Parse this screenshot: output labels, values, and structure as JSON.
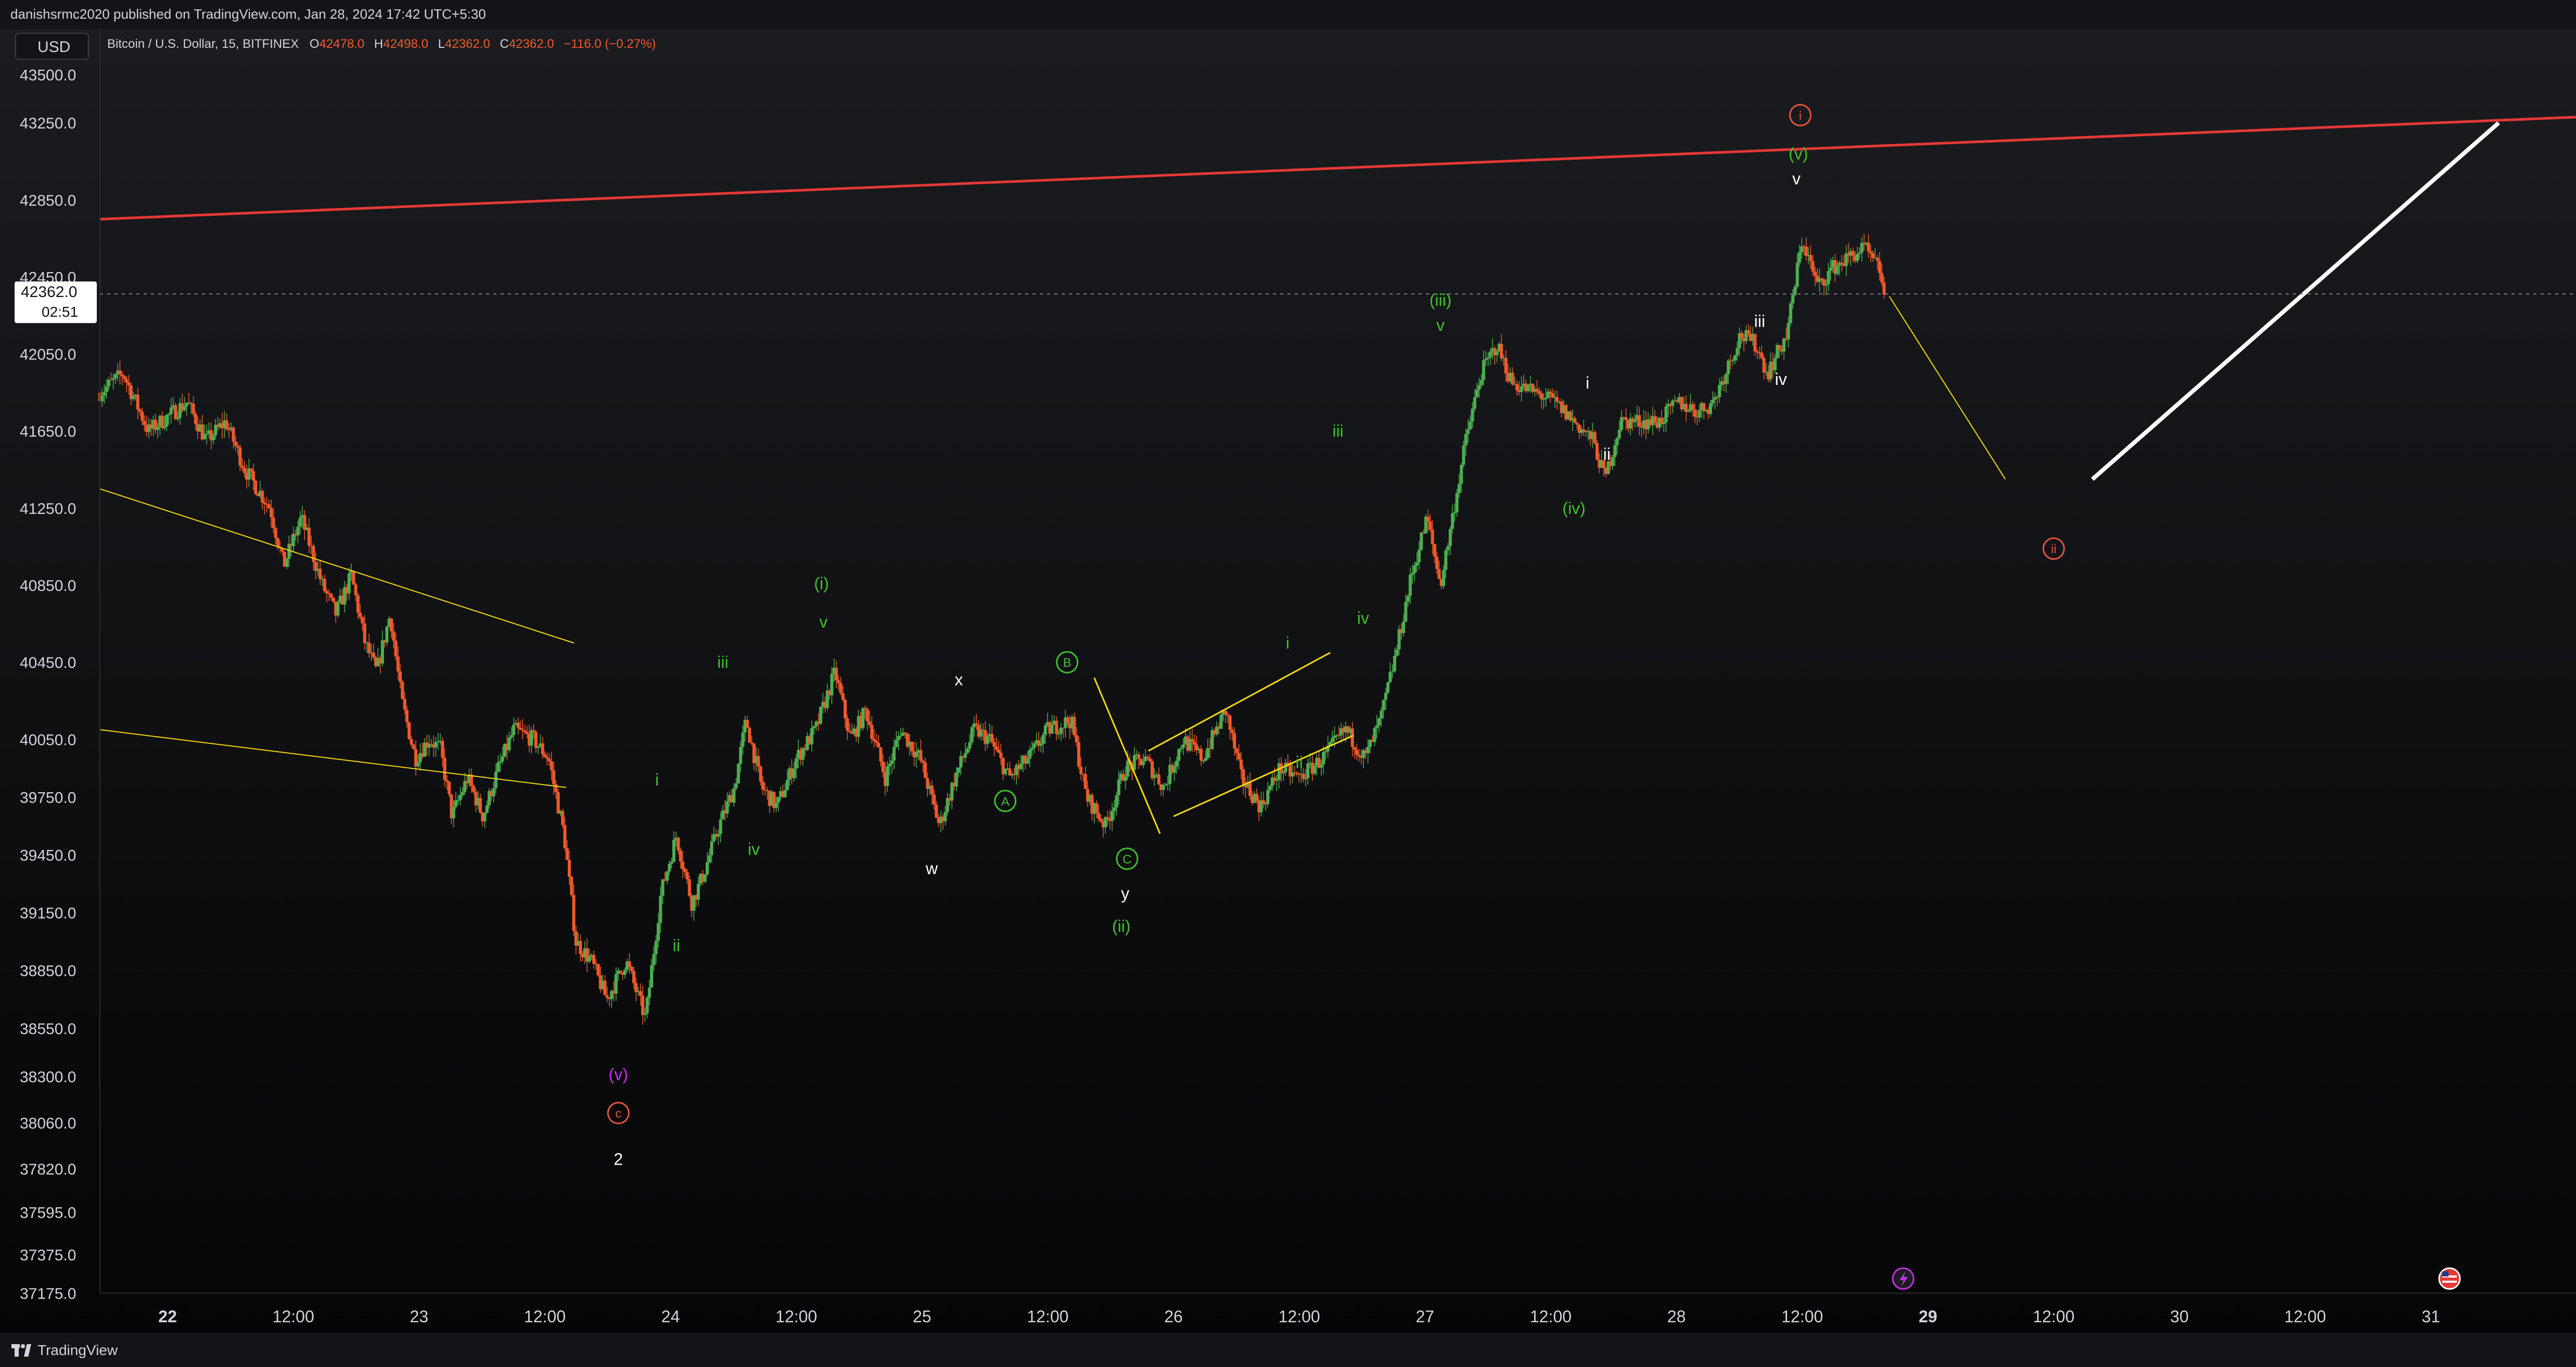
{
  "header": {
    "attribution": "danishsrmc2020 published on TradingView.com, Jan 28, 2024 17:42 UTC+5:30"
  },
  "footer": {
    "brand": "TradingView"
  },
  "colors": {
    "up": "#4caf50",
    "down": "#f0592a",
    "red_line": "#e53935",
    "yellow": "#f5d90a",
    "green_label": "#3ec22a",
    "red_label": "#e5533c",
    "purple_label": "#c030e0"
  },
  "chart_data": {
    "type": "candlestick",
    "symbol_legend": {
      "name": "Bitcoin / U.S. Dollar, 15, BITFINEX",
      "o_label": "O",
      "o_value": "42478.0",
      "h_label": "H",
      "h_value": "42498.0",
      "l_label": "L",
      "l_value": "42362.0",
      "c_label": "C",
      "c_value": "42362.0",
      "change": "−116.0 (−0.27%)"
    },
    "currency": "USD",
    "last_price": "42362.0",
    "countdown": "02:51",
    "y_ticks": [
      "43500.0",
      "43250.0",
      "42850.0",
      "42450.0",
      "42050.0",
      "41650.0",
      "41250.0",
      "40850.0",
      "40450.0",
      "40050.0",
      "39750.0",
      "39450.0",
      "39150.0",
      "38850.0",
      "38550.0",
      "38300.0",
      "38060.0",
      "37820.0",
      "37595.0",
      "37375.0",
      "37175.0"
    ],
    "x_ticks": [
      {
        "label": "22",
        "bold": true
      },
      {
        "label": "12:00",
        "bold": false
      },
      {
        "label": "23",
        "bold": false
      },
      {
        "label": "12:00",
        "bold": false
      },
      {
        "label": "24",
        "bold": false
      },
      {
        "label": "12:00",
        "bold": false
      },
      {
        "label": "25",
        "bold": false
      },
      {
        "label": "12:00",
        "bold": false
      },
      {
        "label": "26",
        "bold": false
      },
      {
        "label": "12:00",
        "bold": false
      },
      {
        "label": "27",
        "bold": false
      },
      {
        "label": "12:00",
        "bold": false
      },
      {
        "label": "28",
        "bold": false
      },
      {
        "label": "12:00",
        "bold": false
      },
      {
        "label": "29",
        "bold": true
      },
      {
        "label": "12:00",
        "bold": false
      },
      {
        "label": "30",
        "bold": false
      },
      {
        "label": "12:00",
        "bold": false
      },
      {
        "label": "31",
        "bold": false
      }
    ],
    "price_path": [
      [
        0.0,
        41850
      ],
      [
        1.2,
        41950
      ],
      [
        2.5,
        41650
      ],
      [
        4.5,
        41800
      ],
      [
        5.5,
        41600
      ],
      [
        6.5,
        41700
      ],
      [
        7.5,
        41450
      ],
      [
        8.8,
        41250
      ],
      [
        9.5,
        40950
      ],
      [
        10.4,
        41200
      ],
      [
        11.5,
        40850
      ],
      [
        12.2,
        40700
      ],
      [
        13.0,
        40900
      ],
      [
        13.7,
        40550
      ],
      [
        14.3,
        40400
      ],
      [
        15.0,
        40700
      ],
      [
        15.6,
        40250
      ],
      [
        16.3,
        39950
      ],
      [
        17.0,
        40050
      ],
      [
        17.6,
        40000
      ],
      [
        18.2,
        39650
      ],
      [
        19.0,
        39850
      ],
      [
        19.8,
        39650
      ],
      [
        20.6,
        39900
      ],
      [
        21.4,
        40100
      ],
      [
        22.4,
        40050
      ],
      [
        23.2,
        39950
      ],
      [
        24.0,
        39550
      ],
      [
        24.6,
        39000
      ],
      [
        25.4,
        38900
      ],
      [
        26.2,
        38700
      ],
      [
        27.2,
        38900
      ],
      [
        28.2,
        38600
      ],
      [
        29.0,
        39250
      ],
      [
        29.8,
        39550
      ],
      [
        30.6,
        39200
      ],
      [
        31.2,
        39350
      ],
      [
        32.0,
        39600
      ],
      [
        32.8,
        39800
      ],
      [
        33.4,
        40150
      ],
      [
        34.2,
        39800
      ],
      [
        35.0,
        39700
      ],
      [
        36.0,
        39950
      ],
      [
        37.0,
        40100
      ],
      [
        38.0,
        40400
      ],
      [
        38.8,
        40050
      ],
      [
        39.6,
        40200
      ],
      [
        40.6,
        39850
      ],
      [
        41.4,
        40100
      ],
      [
        42.4,
        39950
      ],
      [
        43.4,
        39600
      ],
      [
        44.2,
        39850
      ],
      [
        45.2,
        40100
      ],
      [
        46.0,
        40050
      ],
      [
        47.0,
        39850
      ],
      [
        48.0,
        39950
      ],
      [
        49.0,
        40100
      ],
      [
        50.2,
        40150
      ],
      [
        51.0,
        39750
      ],
      [
        52.0,
        39600
      ],
      [
        53.0,
        39900
      ],
      [
        54.0,
        39950
      ],
      [
        55.0,
        39800
      ],
      [
        56.0,
        40050
      ],
      [
        57.0,
        39950
      ],
      [
        58.2,
        40200
      ],
      [
        59.0,
        39850
      ],
      [
        60.0,
        39700
      ],
      [
        61.0,
        39900
      ],
      [
        62.0,
        39850
      ],
      [
        63.2,
        39950
      ],
      [
        64.4,
        40100
      ],
      [
        65.4,
        39950
      ],
      [
        66.2,
        40150
      ],
      [
        67.0,
        40500
      ],
      [
        67.8,
        40900
      ],
      [
        68.6,
        41200
      ],
      [
        69.3,
        40850
      ],
      [
        70.0,
        41250
      ],
      [
        70.6,
        41600
      ],
      [
        71.4,
        41950
      ],
      [
        72.2,
        42100
      ],
      [
        73.0,
        41900
      ],
      [
        74.2,
        41850
      ],
      [
        75.2,
        41800
      ],
      [
        76.2,
        41700
      ],
      [
        77.2,
        41600
      ],
      [
        77.8,
        41400
      ],
      [
        78.6,
        41700
      ],
      [
        79.4,
        41700
      ],
      [
        80.6,
        41700
      ],
      [
        81.6,
        41800
      ],
      [
        82.6,
        41750
      ],
      [
        83.4,
        41800
      ],
      [
        84.2,
        42000
      ],
      [
        84.8,
        42150
      ],
      [
        85.6,
        42100
      ],
      [
        86.2,
        41950
      ],
      [
        87.2,
        42150
      ],
      [
        88.0,
        42650
      ],
      [
        88.8,
        42400
      ],
      [
        89.6,
        42500
      ],
      [
        90.4,
        42550
      ],
      [
        91.2,
        42600
      ],
      [
        92.0,
        42480
      ],
      [
        92.3,
        42362
      ]
    ],
    "lines": [
      {
        "color": "#e53935",
        "width": 5,
        "points": [
          [
            0,
            42750
          ],
          [
            128,
            43280
          ]
        ]
      },
      {
        "color": "#f5d90a",
        "width": 2,
        "points": [
          [
            0,
            41350
          ],
          [
            24.5,
            40550
          ]
        ]
      },
      {
        "color": "#f5d90a",
        "width": 2,
        "points": [
          [
            0,
            40100
          ],
          [
            24.1,
            39800
          ]
        ]
      },
      {
        "color": "#f5d90a",
        "width": 3,
        "points": [
          [
            51.4,
            40370
          ],
          [
            54.8,
            39560
          ]
        ]
      },
      {
        "color": "#f5d90a",
        "width": 3,
        "points": [
          [
            54.2,
            39990
          ],
          [
            63.6,
            40500
          ]
        ]
      },
      {
        "color": "#f5d90a",
        "width": 3,
        "points": [
          [
            55.5,
            39650
          ],
          [
            64.8,
            40070
          ]
        ]
      },
      {
        "color": "#f5d90a",
        "width": 2,
        "points": [
          [
            92.5,
            42350
          ],
          [
            98.5,
            41400
          ]
        ]
      },
      {
        "color": "#ffffff",
        "width": 8,
        "points": [
          [
            103,
            41400
          ],
          [
            124,
            43250
          ]
        ]
      },
      {
        "color": "#7e8087",
        "width": 2,
        "dash": true,
        "points": [
          [
            0,
            42362
          ],
          [
            128,
            42362
          ]
        ]
      }
    ],
    "wave_labels": [
      {
        "text": "(v)",
        "x": 26.8,
        "y": 38310,
        "color": "#c030e0",
        "style": "plain"
      },
      {
        "text": "c",
        "x": 26.8,
        "y": 38110,
        "color": "#e5533c",
        "style": "circle"
      },
      {
        "text": "2",
        "x": 26.8,
        "y": 37870,
        "color": "#ffffff",
        "style": "plain"
      },
      {
        "text": "i",
        "x": 28.8,
        "y": 39840,
        "color": "#3ec22a",
        "style": "plain"
      },
      {
        "text": "ii",
        "x": 29.8,
        "y": 38980,
        "color": "#3ec22a",
        "style": "plain"
      },
      {
        "text": "iii",
        "x": 32.2,
        "y": 40450,
        "color": "#3ec22a",
        "style": "plain"
      },
      {
        "text": "iv",
        "x": 33.8,
        "y": 39480,
        "color": "#3ec22a",
        "style": "plain"
      },
      {
        "text": "(i)",
        "x": 37.3,
        "y": 40860,
        "color": "#3ec22a",
        "style": "plain"
      },
      {
        "text": "v",
        "x": 37.4,
        "y": 40660,
        "color": "#3ec22a",
        "style": "plain"
      },
      {
        "text": "x",
        "x": 44.4,
        "y": 40360,
        "color": "#ffffff",
        "style": "plain"
      },
      {
        "text": "w",
        "x": 43.0,
        "y": 39380,
        "color": "#ffffff",
        "style": "plain"
      },
      {
        "text": "B",
        "x": 50.0,
        "y": 40450,
        "color": "#3ec22a",
        "style": "circle"
      },
      {
        "text": "A",
        "x": 46.8,
        "y": 39730,
        "color": "#3ec22a",
        "style": "circle"
      },
      {
        "text": "C",
        "x": 53.1,
        "y": 39430,
        "color": "#3ec22a",
        "style": "circle"
      },
      {
        "text": "y",
        "x": 53.0,
        "y": 39250,
        "color": "#ffffff",
        "style": "plain"
      },
      {
        "text": "(ii)",
        "x": 52.8,
        "y": 39080,
        "color": "#3ec22a",
        "style": "plain"
      },
      {
        "text": "i",
        "x": 61.4,
        "y": 40550,
        "color": "#3ec22a",
        "style": "plain"
      },
      {
        "text": "ii",
        "x": 62.0,
        "y": 39930,
        "color": "#3ec22a",
        "style": "plain"
      },
      {
        "text": "iii",
        "x": 64.0,
        "y": 41650,
        "color": "#3ec22a",
        "style": "plain"
      },
      {
        "text": "iv",
        "x": 65.3,
        "y": 40680,
        "color": "#3ec22a",
        "style": "plain"
      },
      {
        "text": "(iii)",
        "x": 69.3,
        "y": 42330,
        "color": "#3ec22a",
        "style": "plain"
      },
      {
        "text": "v",
        "x": 69.3,
        "y": 42200,
        "color": "#3ec22a",
        "style": "plain"
      },
      {
        "text": "(iv)",
        "x": 76.2,
        "y": 41250,
        "color": "#3ec22a",
        "style": "plain"
      },
      {
        "text": "i",
        "x": 76.9,
        "y": 41900,
        "color": "#ffffff",
        "style": "plain"
      },
      {
        "text": "ii",
        "x": 77.9,
        "y": 41530,
        "color": "#ffffff",
        "style": "plain"
      },
      {
        "text": "iii",
        "x": 85.8,
        "y": 42220,
        "color": "#ffffff",
        "style": "plain"
      },
      {
        "text": "iv",
        "x": 86.9,
        "y": 41920,
        "color": "#ffffff",
        "style": "plain"
      },
      {
        "text": "i",
        "x": 87.9,
        "y": 43290,
        "color": "#e5533c",
        "style": "circle"
      },
      {
        "text": "(v)",
        "x": 87.8,
        "y": 43090,
        "color": "#3ec22a",
        "style": "plain"
      },
      {
        "text": "v",
        "x": 87.7,
        "y": 42960,
        "color": "#ffffff",
        "style": "plain"
      },
      {
        "text": "ii",
        "x": 101.0,
        "y": 41040,
        "color": "#e5533c",
        "style": "circle"
      }
    ],
    "x_range": [
      0,
      128
    ],
    "y_range": [
      37175,
      43580
    ],
    "grid": false,
    "legend": "top-left"
  }
}
